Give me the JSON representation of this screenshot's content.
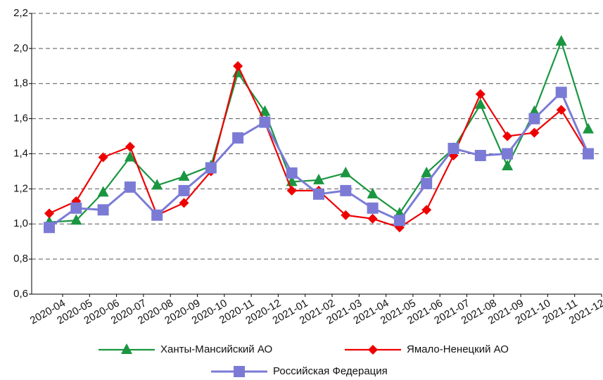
{
  "chart_data": {
    "type": "line",
    "categories": [
      "2020-04",
      "2020-05",
      "2020-06",
      "2020-07",
      "2020-08",
      "2020-09",
      "2020-10",
      "2020-11",
      "2020-12",
      "2021-01",
      "2021-02",
      "2021-03",
      "2021-04",
      "2021-05",
      "2021-06",
      "2021-07",
      "2021-08",
      "2021-09",
      "2021-10",
      "2021-11",
      "2021-12"
    ],
    "series": [
      {
        "name": "Ханты-Мансийский АО",
        "color": "#1a9641",
        "marker": "triangle",
        "values": [
          1.01,
          1.02,
          1.18,
          1.38,
          1.22,
          1.27,
          1.33,
          1.86,
          1.64,
          1.24,
          1.25,
          1.29,
          1.17,
          1.06,
          1.29,
          1.43,
          1.68,
          1.33,
          1.64,
          2.04,
          1.54
        ]
      },
      {
        "name": "Ямало-Ненецкий АО",
        "color": "#ee0000",
        "marker": "diamond",
        "values": [
          1.06,
          1.13,
          1.38,
          1.44,
          1.05,
          1.12,
          1.3,
          1.9,
          1.58,
          1.19,
          1.19,
          1.05,
          1.03,
          0.98,
          1.08,
          1.39,
          1.74,
          1.5,
          1.52,
          1.65,
          1.4
        ]
      },
      {
        "name": "Российская Федерация",
        "color": "#7b7bd6",
        "marker": "square",
        "values": [
          0.98,
          1.09,
          1.08,
          1.21,
          1.05,
          1.19,
          1.32,
          1.49,
          1.58,
          1.29,
          1.17,
          1.19,
          1.09,
          1.02,
          1.23,
          1.43,
          1.39,
          1.4,
          1.6,
          1.75,
          1.4
        ]
      }
    ],
    "ylim": [
      0.6,
      2.2
    ],
    "yticks": [
      {
        "value": 0.6,
        "label": "0,6"
      },
      {
        "value": 0.8,
        "label": "0,8"
      },
      {
        "value": 1.0,
        "label": "1,0"
      },
      {
        "value": 1.2,
        "label": "1,2"
      },
      {
        "value": 1.4,
        "label": "1,4"
      },
      {
        "value": 1.6,
        "label": "1,6"
      },
      {
        "value": 1.8,
        "label": "1,8"
      },
      {
        "value": 2.0,
        "label": "2,0"
      },
      {
        "value": 2.2,
        "label": "2,2"
      }
    ],
    "grid": true
  }
}
